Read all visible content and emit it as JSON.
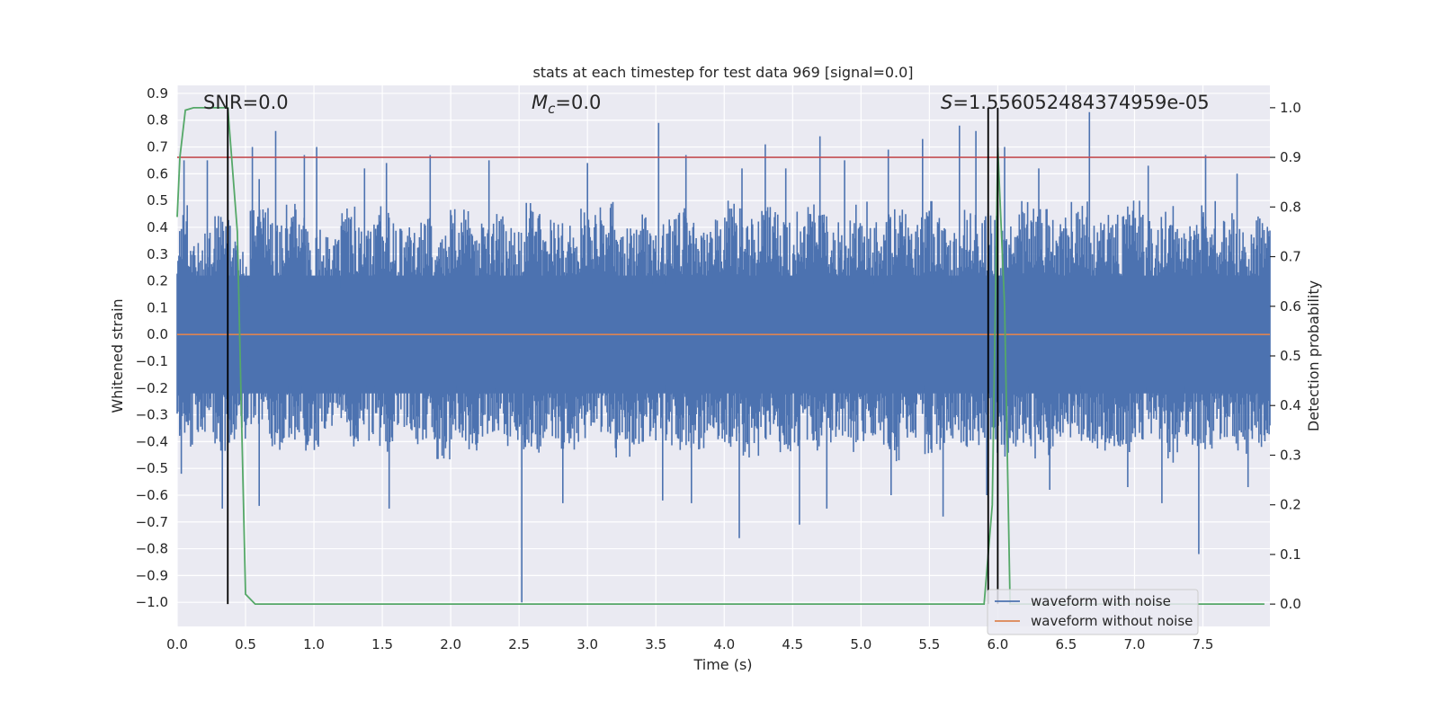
{
  "chart_data": {
    "type": "line",
    "title": "stats at each timestep for test data 969 [signal=0.0]",
    "xlabel": "Time (s)",
    "ylabel": "Whitened strain",
    "ylabel_right": "Detection probability",
    "xlim": [
      0.0,
      7.99
    ],
    "ylim": [
      -1.09,
      0.93
    ],
    "ylim_right": [
      -0.045,
      1.045
    ],
    "x_ticks": [
      "0.0",
      "0.5",
      "1.0",
      "1.5",
      "2.0",
      "2.5",
      "3.0",
      "3.5",
      "4.0",
      "4.5",
      "5.0",
      "5.5",
      "6.0",
      "6.5",
      "7.0",
      "7.5"
    ],
    "x_tick_values": [
      0.0,
      0.5,
      1.0,
      1.5,
      2.0,
      2.5,
      3.0,
      3.5,
      4.0,
      4.5,
      5.0,
      5.5,
      6.0,
      6.5,
      7.0,
      7.5
    ],
    "y_ticks": [
      "0.9",
      "0.8",
      "0.7",
      "0.6",
      "0.5",
      "0.4",
      "0.3",
      "0.2",
      "0.1",
      "0.0",
      "−0.1",
      "−0.2",
      "−0.3",
      "−0.4",
      "−0.5",
      "−0.6",
      "−0.7",
      "−0.8",
      "−0.9",
      "−1.0"
    ],
    "y_tick_values": [
      0.9,
      0.8,
      0.7,
      0.6,
      0.5,
      0.4,
      0.3,
      0.2,
      0.1,
      0.0,
      -0.1,
      -0.2,
      -0.3,
      -0.4,
      -0.5,
      -0.6,
      -0.7,
      -0.8,
      -0.9,
      -1.0
    ],
    "y_ticks_right": [
      "1.0",
      "0.9",
      "0.8",
      "0.7",
      "0.6",
      "0.5",
      "0.4",
      "0.3",
      "0.2",
      "0.1",
      "0.0"
    ],
    "y_tick_values_right": [
      1.0,
      0.9,
      0.8,
      0.7,
      0.6,
      0.5,
      0.4,
      0.3,
      0.2,
      0.1,
      0.0
    ],
    "annotations": {
      "snr": "SNR=0.0",
      "mc_symbol": "M",
      "mc_sub": "c",
      "mc_value": "=0.0",
      "s_symbol": "S",
      "s_value": "=1.556052484374959e-05"
    },
    "grid": true,
    "legend_position": "lower-right",
    "legend": [
      "waveform with noise",
      "waveform without noise"
    ],
    "series": [
      {
        "name": "waveform with noise",
        "color": "#4c72b0",
        "axis": "left",
        "band_high": [
          0.5,
          0.4,
          0.45,
          0.35,
          0.5,
          0.42,
          0.5,
          0.4,
          0.38,
          0.48,
          0.42,
          0.5,
          0.4,
          0.45,
          0.38,
          0.5,
          0.42,
          0.46,
          0.4,
          0.5,
          0.44,
          0.42,
          0.48,
          0.5,
          0.4,
          0.45,
          0.42,
          0.5,
          0.46,
          0.43,
          0.5,
          0.45,
          0.48,
          0.42,
          0.5,
          0.46,
          0.44,
          0.5,
          0.42,
          0.48,
          0.45,
          0.5,
          0.4,
          0.5,
          0.46,
          0.42,
          0.5,
          0.48,
          0.44,
          0.5,
          0.42,
          0.46,
          0.5,
          0.44,
          0.48,
          0.42,
          0.5,
          0.46,
          0.4,
          0.45
        ],
        "band_low": [
          -0.42,
          -0.38,
          -0.45,
          -0.4,
          -0.35,
          -0.44,
          -0.4,
          -0.46,
          -0.38,
          -0.42,
          -0.4,
          -0.45,
          -0.36,
          -0.42,
          -0.48,
          -0.4,
          -0.44,
          -0.38,
          -0.42,
          -0.46,
          -0.4,
          -0.44,
          -0.42,
          -0.38,
          -0.46,
          -0.42,
          -0.4,
          -0.45,
          -0.44,
          -0.4,
          -0.42,
          -0.48,
          -0.4,
          -0.44,
          -0.42,
          -0.46,
          -0.4,
          -0.44,
          -0.42,
          -0.48,
          -0.4,
          -0.46,
          -0.42,
          -0.44,
          -0.4,
          -0.46,
          -0.42,
          -0.48,
          -0.44,
          -0.4,
          -0.46,
          -0.42,
          -0.44,
          -0.4,
          -0.48,
          -0.42,
          -0.44,
          -0.4,
          -0.46,
          -0.42
        ],
        "peaks": [
          [
            0.05,
            0.65
          ],
          [
            0.22,
            0.65
          ],
          [
            0.37,
            0.8
          ],
          [
            0.55,
            0.7
          ],
          [
            0.6,
            0.58
          ],
          [
            0.72,
            0.76
          ],
          [
            0.93,
            0.67
          ],
          [
            1.02,
            0.7
          ],
          [
            1.37,
            0.62
          ],
          [
            1.53,
            0.64
          ],
          [
            1.85,
            0.67
          ],
          [
            2.28,
            0.65
          ],
          [
            3.0,
            0.64
          ],
          [
            3.52,
            0.79
          ],
          [
            3.72,
            0.67
          ],
          [
            4.13,
            0.62
          ],
          [
            4.3,
            0.71
          ],
          [
            4.45,
            0.62
          ],
          [
            4.7,
            0.74
          ],
          [
            4.88,
            0.65
          ],
          [
            5.2,
            0.69
          ],
          [
            5.45,
            0.73
          ],
          [
            5.72,
            0.78
          ],
          [
            5.84,
            0.76
          ],
          [
            6.05,
            0.7
          ],
          [
            6.3,
            0.62
          ],
          [
            6.67,
            0.83
          ],
          [
            7.1,
            0.63
          ],
          [
            7.52,
            0.67
          ],
          [
            7.75,
            0.6
          ]
        ],
        "troughs": [
          [
            0.03,
            -0.52
          ],
          [
            0.33,
            -0.65
          ],
          [
            0.6,
            -0.64
          ],
          [
            1.55,
            -0.65
          ],
          [
            2.52,
            -1.0
          ],
          [
            2.82,
            -0.63
          ],
          [
            3.55,
            -0.62
          ],
          [
            3.76,
            -0.63
          ],
          [
            4.11,
            -0.76
          ],
          [
            4.55,
            -0.71
          ],
          [
            4.75,
            -0.65
          ],
          [
            5.22,
            -0.6
          ],
          [
            5.6,
            -0.68
          ],
          [
            5.92,
            -0.6
          ],
          [
            6.38,
            -0.58
          ],
          [
            6.95,
            -0.57
          ],
          [
            7.2,
            -0.63
          ],
          [
            7.47,
            -0.82
          ],
          [
            7.83,
            -0.57
          ]
        ]
      },
      {
        "name": "waveform without noise",
        "color": "#dd8452",
        "axis": "left",
        "x": [
          0.0,
          7.99
        ],
        "y": [
          0.0,
          0.0
        ]
      },
      {
        "color": "#55a868",
        "axis": "right",
        "x": [
          0.0,
          0.02,
          0.06,
          0.12,
          0.25,
          0.37,
          0.44,
          0.5,
          0.57,
          1.0,
          3.0,
          5.0,
          5.9,
          5.96,
          6.0,
          6.05,
          6.09,
          7.0,
          7.95
        ],
        "y": [
          0.78,
          0.9,
          0.995,
          1.0,
          1.0,
          1.0,
          0.75,
          0.02,
          0.0,
          0.0,
          0.0,
          0.0,
          0.0,
          0.2,
          0.92,
          0.6,
          0.0,
          0.0,
          0.0
        ]
      }
    ],
    "threshold": {
      "value": 0.9,
      "axis": "right",
      "color": "#c44e52"
    },
    "vertical_markers": [
      0.37,
      5.93,
      6.0
    ],
    "marker_color": "#000000"
  }
}
